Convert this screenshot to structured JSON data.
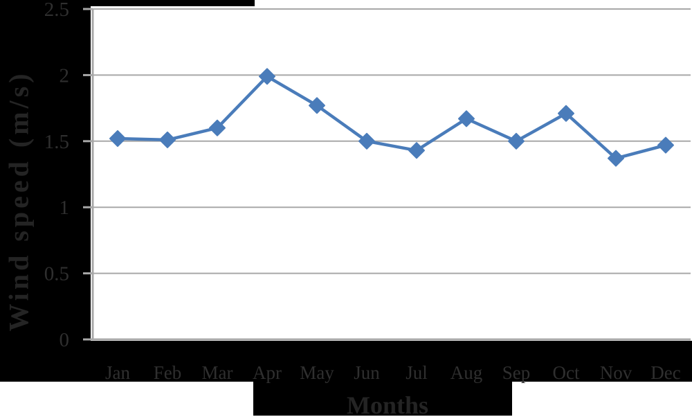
{
  "chart_data": {
    "type": "line",
    "title": "",
    "categories": [
      "Jan",
      "Feb",
      "Mar",
      "Apr",
      "May",
      "Jun",
      "Jul",
      "Aug",
      "Sep",
      "Oct",
      "Nov",
      "Dec"
    ],
    "values": [
      1.52,
      1.51,
      1.6,
      1.99,
      1.77,
      1.5,
      1.43,
      1.67,
      1.5,
      1.71,
      1.37,
      1.47
    ],
    "xlabel": "Months",
    "ylabel": "Wind speed (m/s)",
    "ylim": [
      0,
      2.5
    ],
    "yticks": [
      0,
      0.5,
      1,
      1.5,
      2,
      2.5
    ],
    "ytick_labels": [
      "0",
      "0.5",
      "1",
      "1.5",
      "2",
      "2.5"
    ],
    "grid": "horizontal",
    "legend": false,
    "marker": "diamond"
  },
  "colors": {
    "series_line": "#4a7cba",
    "gridline": "#a8a8a8",
    "axis": "#a8a8a8",
    "label_text": "#2f2f2f",
    "title_text": "#242424",
    "background_black": "#000000",
    "plot_background": "#ffffff"
  }
}
